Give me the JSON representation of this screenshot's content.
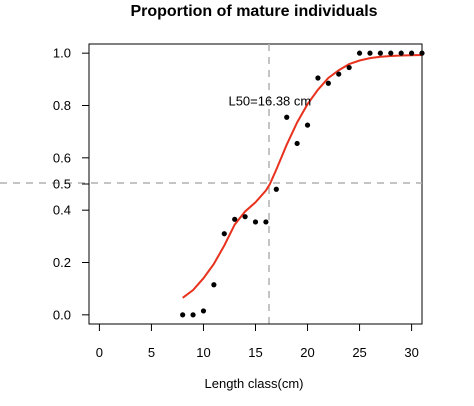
{
  "chart_data": {
    "type": "scatter",
    "title": "Proportion of mature individuals",
    "xlabel": "Length class(cm)",
    "ylabel": "",
    "xlim": [
      -1,
      31
    ],
    "ylim": [
      -0.035,
      1.035
    ],
    "xticks": [
      0,
      5,
      10,
      15,
      20,
      25,
      30
    ],
    "xtick_labels": [
      "0",
      "5",
      "10",
      "15",
      "20",
      "25",
      "30"
    ],
    "yticks": [
      0.0,
      0.2,
      0.4,
      0.5,
      0.6,
      0.8,
      1.0
    ],
    "ytick_labels": [
      "0.0",
      "0.2",
      "0.4",
      "0.5",
      "0.6",
      "0.8",
      "1.0"
    ],
    "grid": false,
    "colors": {
      "curve": "#e8321e",
      "points": "#000000",
      "reference": "#b0b0b0"
    },
    "series": [
      {
        "type": "scatter",
        "x": [
          8,
          9,
          10,
          11,
          12,
          13,
          14,
          15,
          16,
          17,
          18,
          19,
          20,
          21,
          22,
          23,
          24,
          25,
          26,
          27,
          28,
          29,
          30,
          31
        ],
        "y": [
          0.0,
          0.0,
          0.015,
          0.115,
          0.31,
          0.365,
          0.375,
          0.355,
          0.355,
          0.48,
          0.755,
          0.655,
          0.725,
          0.905,
          0.885,
          0.92,
          0.945,
          1.0,
          1.0,
          1.0,
          1.0,
          1.0,
          1.0,
          1.0
        ]
      },
      {
        "type": "line",
        "x": [
          8,
          9,
          10,
          11,
          12,
          13,
          14,
          15,
          16,
          16.38,
          17,
          18,
          19,
          20,
          21,
          22,
          23,
          24,
          25,
          26,
          27,
          28,
          29,
          30,
          31
        ],
        "y": [
          0.065,
          0.095,
          0.14,
          0.195,
          0.265,
          0.345,
          0.395,
          0.43,
          0.475,
          0.5,
          0.555,
          0.65,
          0.735,
          0.805,
          0.86,
          0.905,
          0.935,
          0.958,
          0.972,
          0.981,
          0.986,
          0.989,
          0.991,
          0.992,
          0.993
        ]
      }
    ],
    "reference_lines": {
      "vertical_x": 16.38,
      "horizontal_y": 0.5
    },
    "annotation": {
      "text": "L50=16.38 cm",
      "x": 16.38,
      "y": 0.8
    }
  }
}
